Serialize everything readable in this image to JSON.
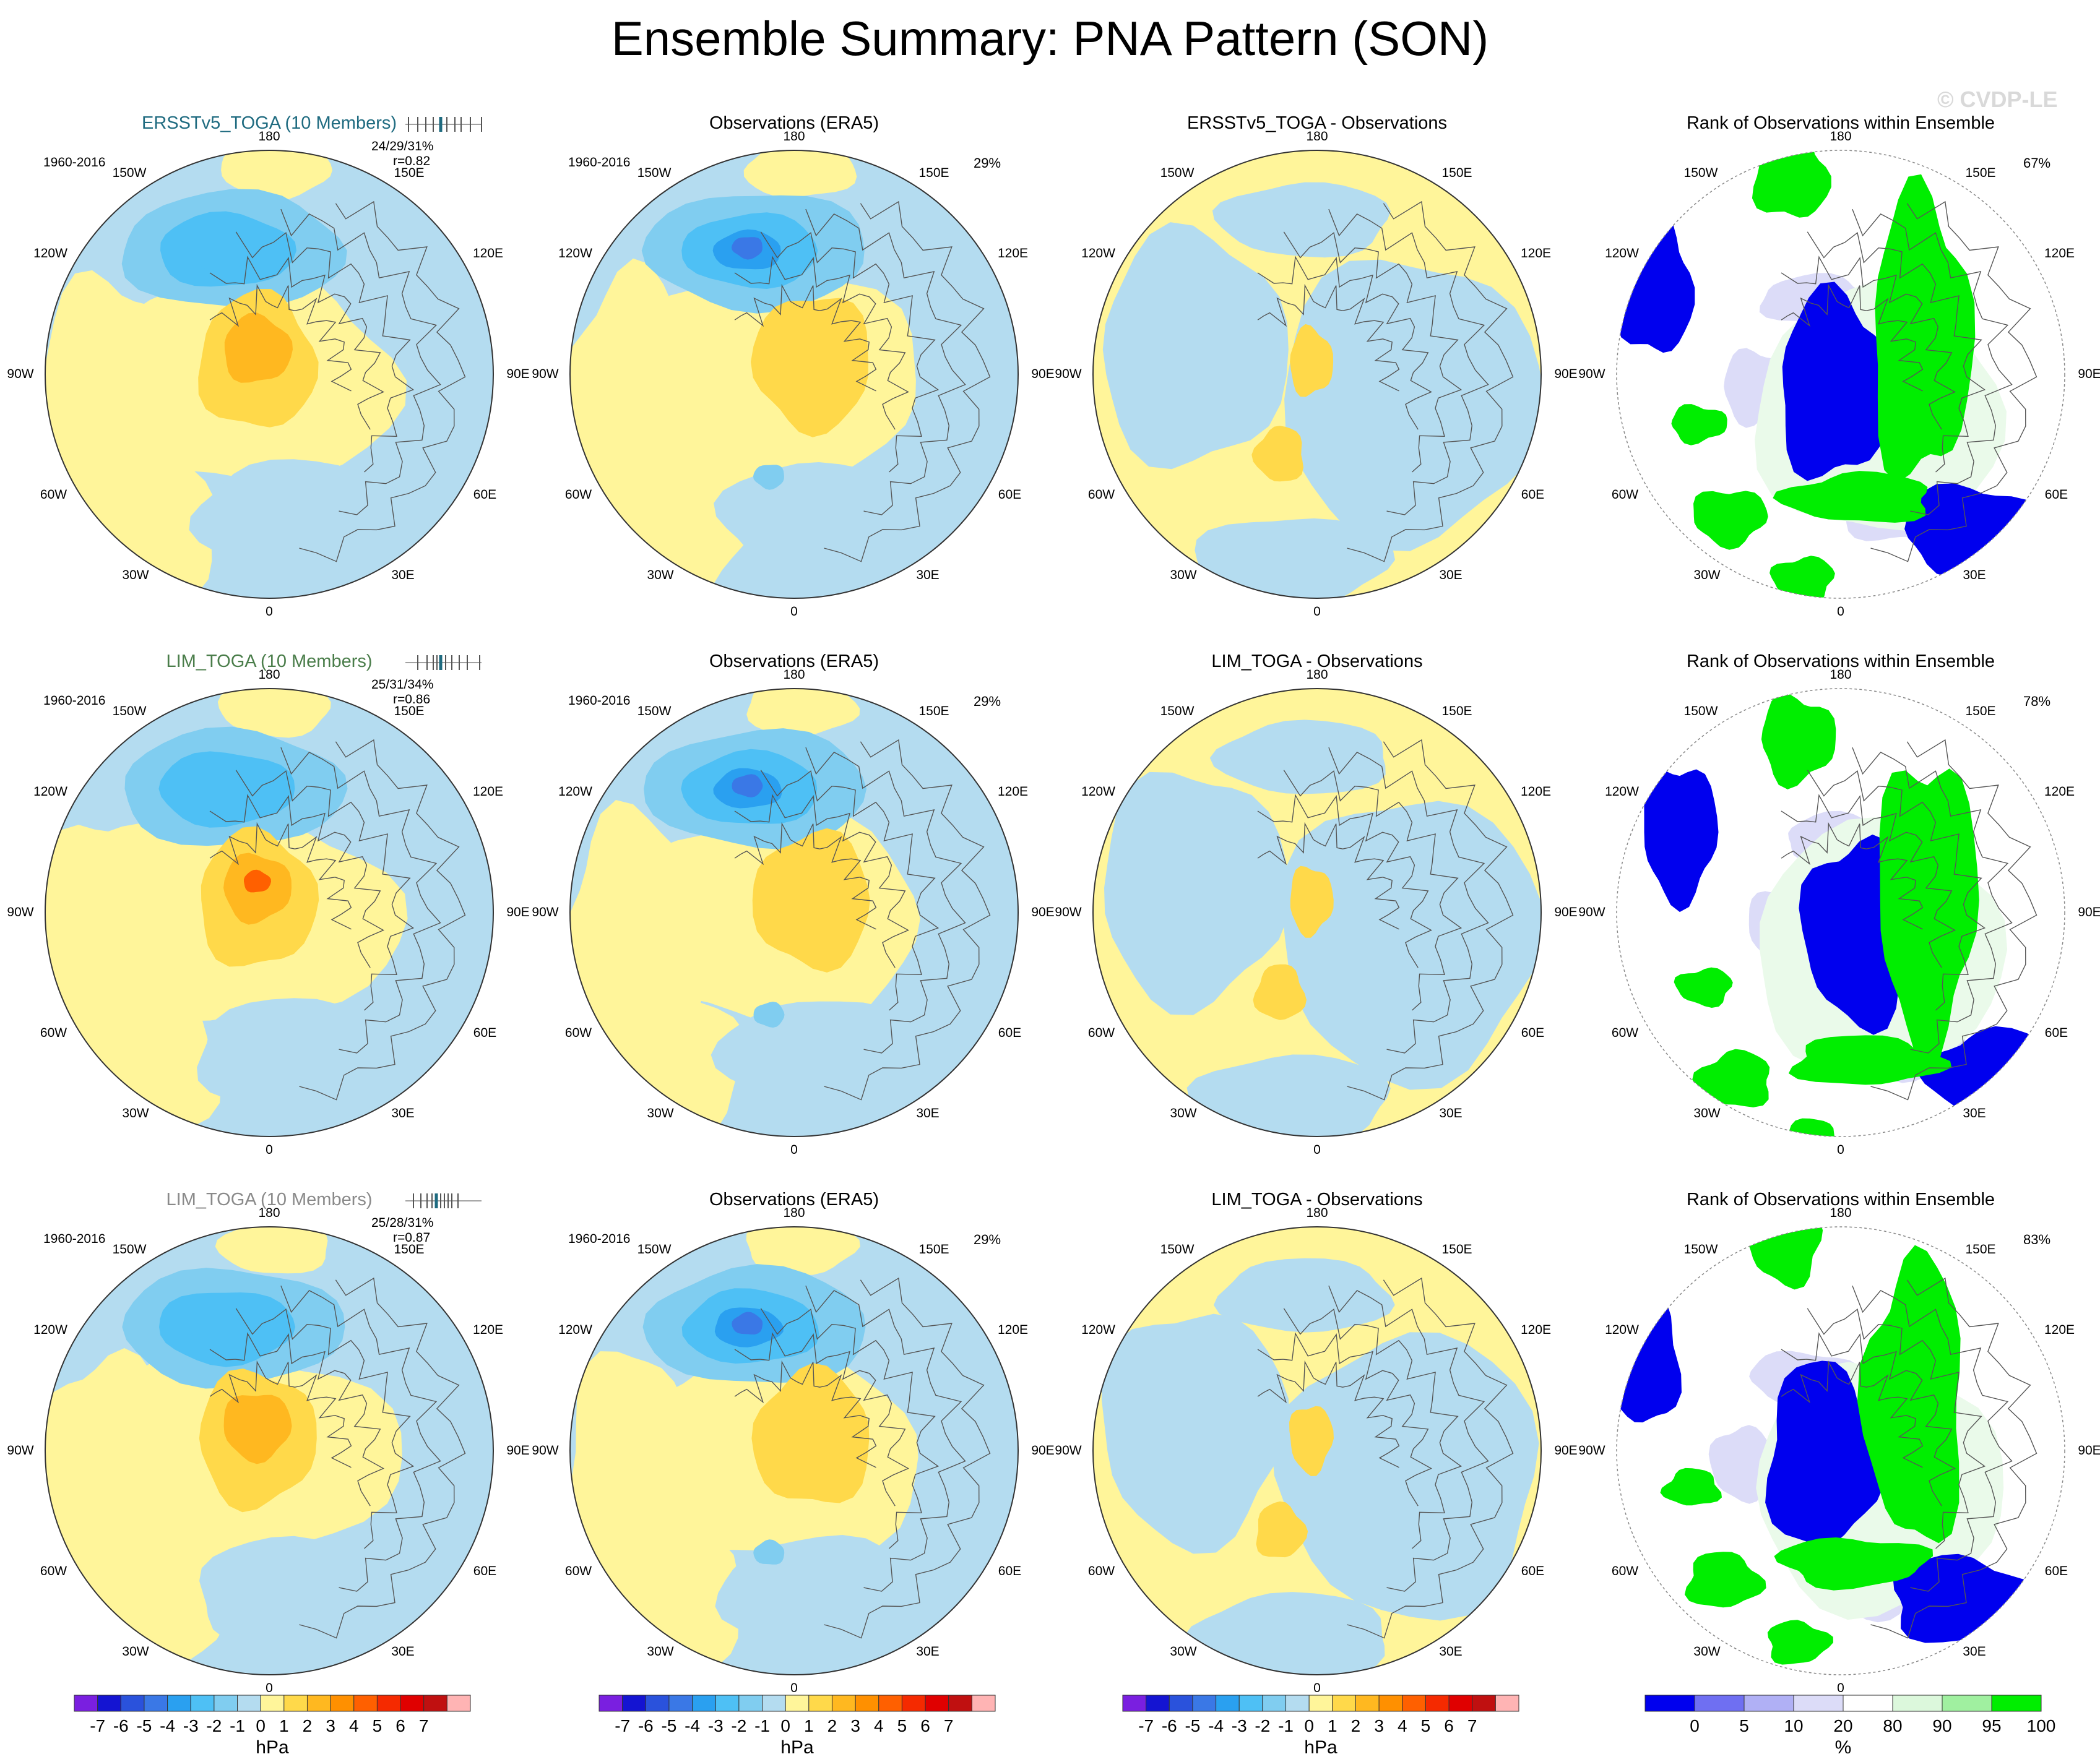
{
  "title": "Ensemble Summary: PNA Pattern (SON)",
  "watermark": "© CVDP-LE",
  "lon_labels": [
    "180",
    "150E",
    "120E",
    "90E",
    "60E",
    "30E",
    "0",
    "30W",
    "60W",
    "90W",
    "120W",
    "150W"
  ],
  "rows": [
    {
      "ens_title": "ERSSTv5_TOGA (10 Members)",
      "ens_title_color": "#1f6b80",
      "period": "1960-2016",
      "stats": "24/29/31%",
      "corr": "r=0.82",
      "obs_title": "Observations (ERA5)",
      "obs_pct": "29%",
      "diff_title": "ERSSTv5_TOGA - Observations",
      "rank_title": "Rank of Observations within Ensemble",
      "rank_pct": "67%"
    },
    {
      "ens_title": "LIM_TOGA (10 Members)",
      "ens_title_color": "#4a7d4a",
      "period": "1960-2016",
      "stats": "25/31/34%",
      "corr": "r=0.86",
      "obs_title": "Observations (ERA5)",
      "obs_pct": "29%",
      "diff_title": "LIM_TOGA - Observations",
      "rank_title": "Rank of Observations within Ensemble",
      "rank_pct": "78%"
    },
    {
      "ens_title": "LIM_TOGA (10 Members)",
      "ens_title_color": "#8a8a8a",
      "period": "1960-2016",
      "stats": "25/28/31%",
      "corr": "r=0.87",
      "obs_title": "Observations (ERA5)",
      "obs_pct": "29%",
      "diff_title": "LIM_TOGA - Observations",
      "rank_title": "Rank of Observations within Ensemble",
      "rank_pct": "83%"
    }
  ],
  "colorbar_hpa": {
    "labels": [
      "-7",
      "-6",
      "-5",
      "-4",
      "-3",
      "-2",
      "-1",
      "0",
      "1",
      "2",
      "3",
      "4",
      "5",
      "6",
      "7"
    ],
    "colors": [
      "#7a1fe0",
      "#1414d2",
      "#2a52dc",
      "#3a78e6",
      "#2aa0f0",
      "#4ec0f5",
      "#80cdf0",
      "#b4dcf0",
      "#fff59a",
      "#ffd94a",
      "#ffb820",
      "#ff9000",
      "#ff6000",
      "#f52a00",
      "#e00000",
      "#c01010",
      "#ffb4b4"
    ],
    "unit": "hPa"
  },
  "colorbar_pct": {
    "labels": [
      "0",
      "5",
      "10",
      "20",
      "80",
      "90",
      "95",
      "100"
    ],
    "colors": [
      "#0000ee",
      "#6f6ff2",
      "#b0b0f5",
      "#dcdcf8",
      "#ffffff",
      "#dcf8dc",
      "#a0f0a0",
      "#00ee00"
    ],
    "unit": "%"
  },
  "chart_data": [
    {
      "type": "heatmap",
      "title": "ERSSTv5_TOGA (10 Members)",
      "subtitle": "1960-2016",
      "annotations": [
        "24/29/31%",
        "r=0.82"
      ],
      "units": "hPa",
      "pattern": {
        "pacific_low_center_hPa": -4,
        "arctic_canada_high_center_hPa": 4
      }
    },
    {
      "type": "heatmap",
      "title": "Observations (ERA5)",
      "subtitle": "1960-2016",
      "annotations": [
        "29%"
      ],
      "units": "hPa",
      "pattern": {
        "pacific_low_center_hPa": -5,
        "arctic_canada_high_center_hPa": 2
      }
    },
    {
      "type": "heatmap",
      "title": "ERSSTv5_TOGA - Observations",
      "units": "hPa",
      "pattern": {
        "max_positive_hPa": 2
      }
    },
    {
      "type": "heatmap",
      "title": "Rank of Observations within Ensemble",
      "annotations": [
        "67%"
      ],
      "units": "%"
    },
    {
      "type": "heatmap",
      "title": "LIM_TOGA (10 Members)",
      "subtitle": "1960-2016",
      "annotations": [
        "25/31/34%",
        "r=0.86"
      ],
      "units": "hPa",
      "pattern": {
        "pacific_low_center_hPa": -4,
        "arctic_canada_high_center_hPa": 5
      }
    },
    {
      "type": "heatmap",
      "title": "Observations (ERA5)",
      "subtitle": "1960-2016",
      "annotations": [
        "29%"
      ],
      "units": "hPa"
    },
    {
      "type": "heatmap",
      "title": "LIM_TOGA - Observations",
      "units": "hPa"
    },
    {
      "type": "heatmap",
      "title": "Rank of Observations within Ensemble",
      "annotations": [
        "78%"
      ],
      "units": "%"
    },
    {
      "type": "heatmap",
      "title": "LIM_TOGA (10 Members)",
      "subtitle": "1960-2016",
      "annotations": [
        "25/28/31%",
        "r=0.87"
      ],
      "units": "hPa",
      "pattern": {
        "pacific_low_center_hPa": -3,
        "arctic_canada_high_center_hPa": 3
      }
    },
    {
      "type": "heatmap",
      "title": "Observations (ERA5)",
      "subtitle": "1960-2016",
      "annotations": [
        "29%"
      ],
      "units": "hPa"
    },
    {
      "type": "heatmap",
      "title": "LIM_TOGA - Observations",
      "units": "hPa"
    },
    {
      "type": "heatmap",
      "title": "Rank of Observations within Ensemble",
      "annotations": [
        "83%"
      ],
      "units": "%"
    }
  ]
}
